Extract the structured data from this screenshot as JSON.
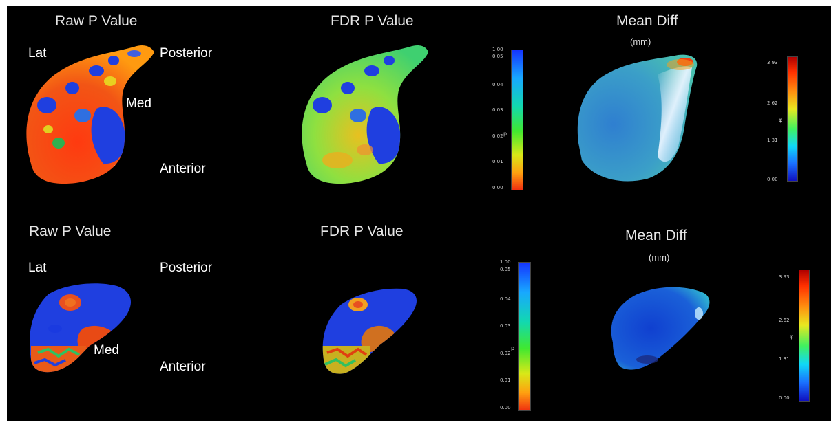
{
  "rows": [
    {
      "raw_title": "Raw P Value",
      "fdr_title": "FDR P Value",
      "diff_title": "Mean Diff",
      "diff_unit": "(mm)",
      "orientation": {
        "lat": "Lat",
        "posterior": "Posterior",
        "med": "Med",
        "anterior": "Anterior"
      }
    },
    {
      "raw_title": "Raw P Value",
      "fdr_title": "FDR P Value",
      "diff_title": "Mean Diff",
      "diff_unit": "(mm)",
      "orientation": {
        "lat": "Lat",
        "posterior": "Posterior",
        "med": "Med",
        "anterior": "Anterior"
      }
    }
  ],
  "colorbar_p": {
    "axis_label": "p",
    "ticks": [
      "1.00",
      "0.05",
      "0.04",
      "0.03",
      "0.02",
      "0.01",
      "0.00"
    ],
    "colors": [
      "#1535ff",
      "#18a8ff",
      "#12d8b0",
      "#40e830",
      "#d8e818",
      "#ffa010",
      "#f03010"
    ]
  },
  "colorbar_diff": {
    "axis_label": "φ",
    "ticks": [
      "3.93",
      "2.62",
      "1.31",
      "0.00"
    ],
    "colors": [
      "#b00000",
      "#ff9010",
      "#e8e820",
      "#40f060",
      "#10d8f8",
      "#1a70ff",
      "#1010c0"
    ]
  },
  "palette": {
    "background": "#000000",
    "high_p": "#1f3fe0",
    "low_p": "#e83a10",
    "mid_p": "#7de040"
  }
}
